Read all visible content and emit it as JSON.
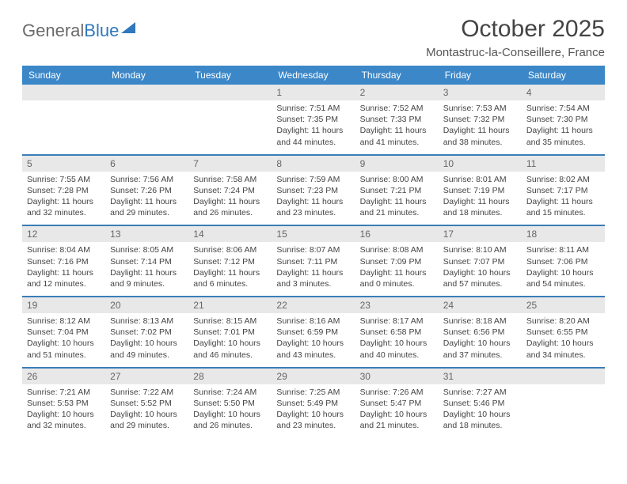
{
  "brand": {
    "part1": "General",
    "part2": "Blue"
  },
  "title": "October 2025",
  "location": "Montastruc-la-Conseillere, France",
  "colors": {
    "header_bg": "#3b87c8",
    "header_text": "#ffffff",
    "daynum_bg": "#e8e8e8",
    "rule": "#3b7db8",
    "body_text": "#444444",
    "page_bg": "#ffffff"
  },
  "weekdays": [
    "Sunday",
    "Monday",
    "Tuesday",
    "Wednesday",
    "Thursday",
    "Friday",
    "Saturday"
  ],
  "weeks": [
    [
      {
        "day": "",
        "sunrise": "",
        "sunset": "",
        "daylight": ""
      },
      {
        "day": "",
        "sunrise": "",
        "sunset": "",
        "daylight": ""
      },
      {
        "day": "",
        "sunrise": "",
        "sunset": "",
        "daylight": ""
      },
      {
        "day": "1",
        "sunrise": "Sunrise: 7:51 AM",
        "sunset": "Sunset: 7:35 PM",
        "daylight": "Daylight: 11 hours and 44 minutes."
      },
      {
        "day": "2",
        "sunrise": "Sunrise: 7:52 AM",
        "sunset": "Sunset: 7:33 PM",
        "daylight": "Daylight: 11 hours and 41 minutes."
      },
      {
        "day": "3",
        "sunrise": "Sunrise: 7:53 AM",
        "sunset": "Sunset: 7:32 PM",
        "daylight": "Daylight: 11 hours and 38 minutes."
      },
      {
        "day": "4",
        "sunrise": "Sunrise: 7:54 AM",
        "sunset": "Sunset: 7:30 PM",
        "daylight": "Daylight: 11 hours and 35 minutes."
      }
    ],
    [
      {
        "day": "5",
        "sunrise": "Sunrise: 7:55 AM",
        "sunset": "Sunset: 7:28 PM",
        "daylight": "Daylight: 11 hours and 32 minutes."
      },
      {
        "day": "6",
        "sunrise": "Sunrise: 7:56 AM",
        "sunset": "Sunset: 7:26 PM",
        "daylight": "Daylight: 11 hours and 29 minutes."
      },
      {
        "day": "7",
        "sunrise": "Sunrise: 7:58 AM",
        "sunset": "Sunset: 7:24 PM",
        "daylight": "Daylight: 11 hours and 26 minutes."
      },
      {
        "day": "8",
        "sunrise": "Sunrise: 7:59 AM",
        "sunset": "Sunset: 7:23 PM",
        "daylight": "Daylight: 11 hours and 23 minutes."
      },
      {
        "day": "9",
        "sunrise": "Sunrise: 8:00 AM",
        "sunset": "Sunset: 7:21 PM",
        "daylight": "Daylight: 11 hours and 21 minutes."
      },
      {
        "day": "10",
        "sunrise": "Sunrise: 8:01 AM",
        "sunset": "Sunset: 7:19 PM",
        "daylight": "Daylight: 11 hours and 18 minutes."
      },
      {
        "day": "11",
        "sunrise": "Sunrise: 8:02 AM",
        "sunset": "Sunset: 7:17 PM",
        "daylight": "Daylight: 11 hours and 15 minutes."
      }
    ],
    [
      {
        "day": "12",
        "sunrise": "Sunrise: 8:04 AM",
        "sunset": "Sunset: 7:16 PM",
        "daylight": "Daylight: 11 hours and 12 minutes."
      },
      {
        "day": "13",
        "sunrise": "Sunrise: 8:05 AM",
        "sunset": "Sunset: 7:14 PM",
        "daylight": "Daylight: 11 hours and 9 minutes."
      },
      {
        "day": "14",
        "sunrise": "Sunrise: 8:06 AM",
        "sunset": "Sunset: 7:12 PM",
        "daylight": "Daylight: 11 hours and 6 minutes."
      },
      {
        "day": "15",
        "sunrise": "Sunrise: 8:07 AM",
        "sunset": "Sunset: 7:11 PM",
        "daylight": "Daylight: 11 hours and 3 minutes."
      },
      {
        "day": "16",
        "sunrise": "Sunrise: 8:08 AM",
        "sunset": "Sunset: 7:09 PM",
        "daylight": "Daylight: 11 hours and 0 minutes."
      },
      {
        "day": "17",
        "sunrise": "Sunrise: 8:10 AM",
        "sunset": "Sunset: 7:07 PM",
        "daylight": "Daylight: 10 hours and 57 minutes."
      },
      {
        "day": "18",
        "sunrise": "Sunrise: 8:11 AM",
        "sunset": "Sunset: 7:06 PM",
        "daylight": "Daylight: 10 hours and 54 minutes."
      }
    ],
    [
      {
        "day": "19",
        "sunrise": "Sunrise: 8:12 AM",
        "sunset": "Sunset: 7:04 PM",
        "daylight": "Daylight: 10 hours and 51 minutes."
      },
      {
        "day": "20",
        "sunrise": "Sunrise: 8:13 AM",
        "sunset": "Sunset: 7:02 PM",
        "daylight": "Daylight: 10 hours and 49 minutes."
      },
      {
        "day": "21",
        "sunrise": "Sunrise: 8:15 AM",
        "sunset": "Sunset: 7:01 PM",
        "daylight": "Daylight: 10 hours and 46 minutes."
      },
      {
        "day": "22",
        "sunrise": "Sunrise: 8:16 AM",
        "sunset": "Sunset: 6:59 PM",
        "daylight": "Daylight: 10 hours and 43 minutes."
      },
      {
        "day": "23",
        "sunrise": "Sunrise: 8:17 AM",
        "sunset": "Sunset: 6:58 PM",
        "daylight": "Daylight: 10 hours and 40 minutes."
      },
      {
        "day": "24",
        "sunrise": "Sunrise: 8:18 AM",
        "sunset": "Sunset: 6:56 PM",
        "daylight": "Daylight: 10 hours and 37 minutes."
      },
      {
        "day": "25",
        "sunrise": "Sunrise: 8:20 AM",
        "sunset": "Sunset: 6:55 PM",
        "daylight": "Daylight: 10 hours and 34 minutes."
      }
    ],
    [
      {
        "day": "26",
        "sunrise": "Sunrise: 7:21 AM",
        "sunset": "Sunset: 5:53 PM",
        "daylight": "Daylight: 10 hours and 32 minutes."
      },
      {
        "day": "27",
        "sunrise": "Sunrise: 7:22 AM",
        "sunset": "Sunset: 5:52 PM",
        "daylight": "Daylight: 10 hours and 29 minutes."
      },
      {
        "day": "28",
        "sunrise": "Sunrise: 7:24 AM",
        "sunset": "Sunset: 5:50 PM",
        "daylight": "Daylight: 10 hours and 26 minutes."
      },
      {
        "day": "29",
        "sunrise": "Sunrise: 7:25 AM",
        "sunset": "Sunset: 5:49 PM",
        "daylight": "Daylight: 10 hours and 23 minutes."
      },
      {
        "day": "30",
        "sunrise": "Sunrise: 7:26 AM",
        "sunset": "Sunset: 5:47 PM",
        "daylight": "Daylight: 10 hours and 21 minutes."
      },
      {
        "day": "31",
        "sunrise": "Sunrise: 7:27 AM",
        "sunset": "Sunset: 5:46 PM",
        "daylight": "Daylight: 10 hours and 18 minutes."
      },
      {
        "day": "",
        "sunrise": "",
        "sunset": "",
        "daylight": ""
      }
    ]
  ]
}
